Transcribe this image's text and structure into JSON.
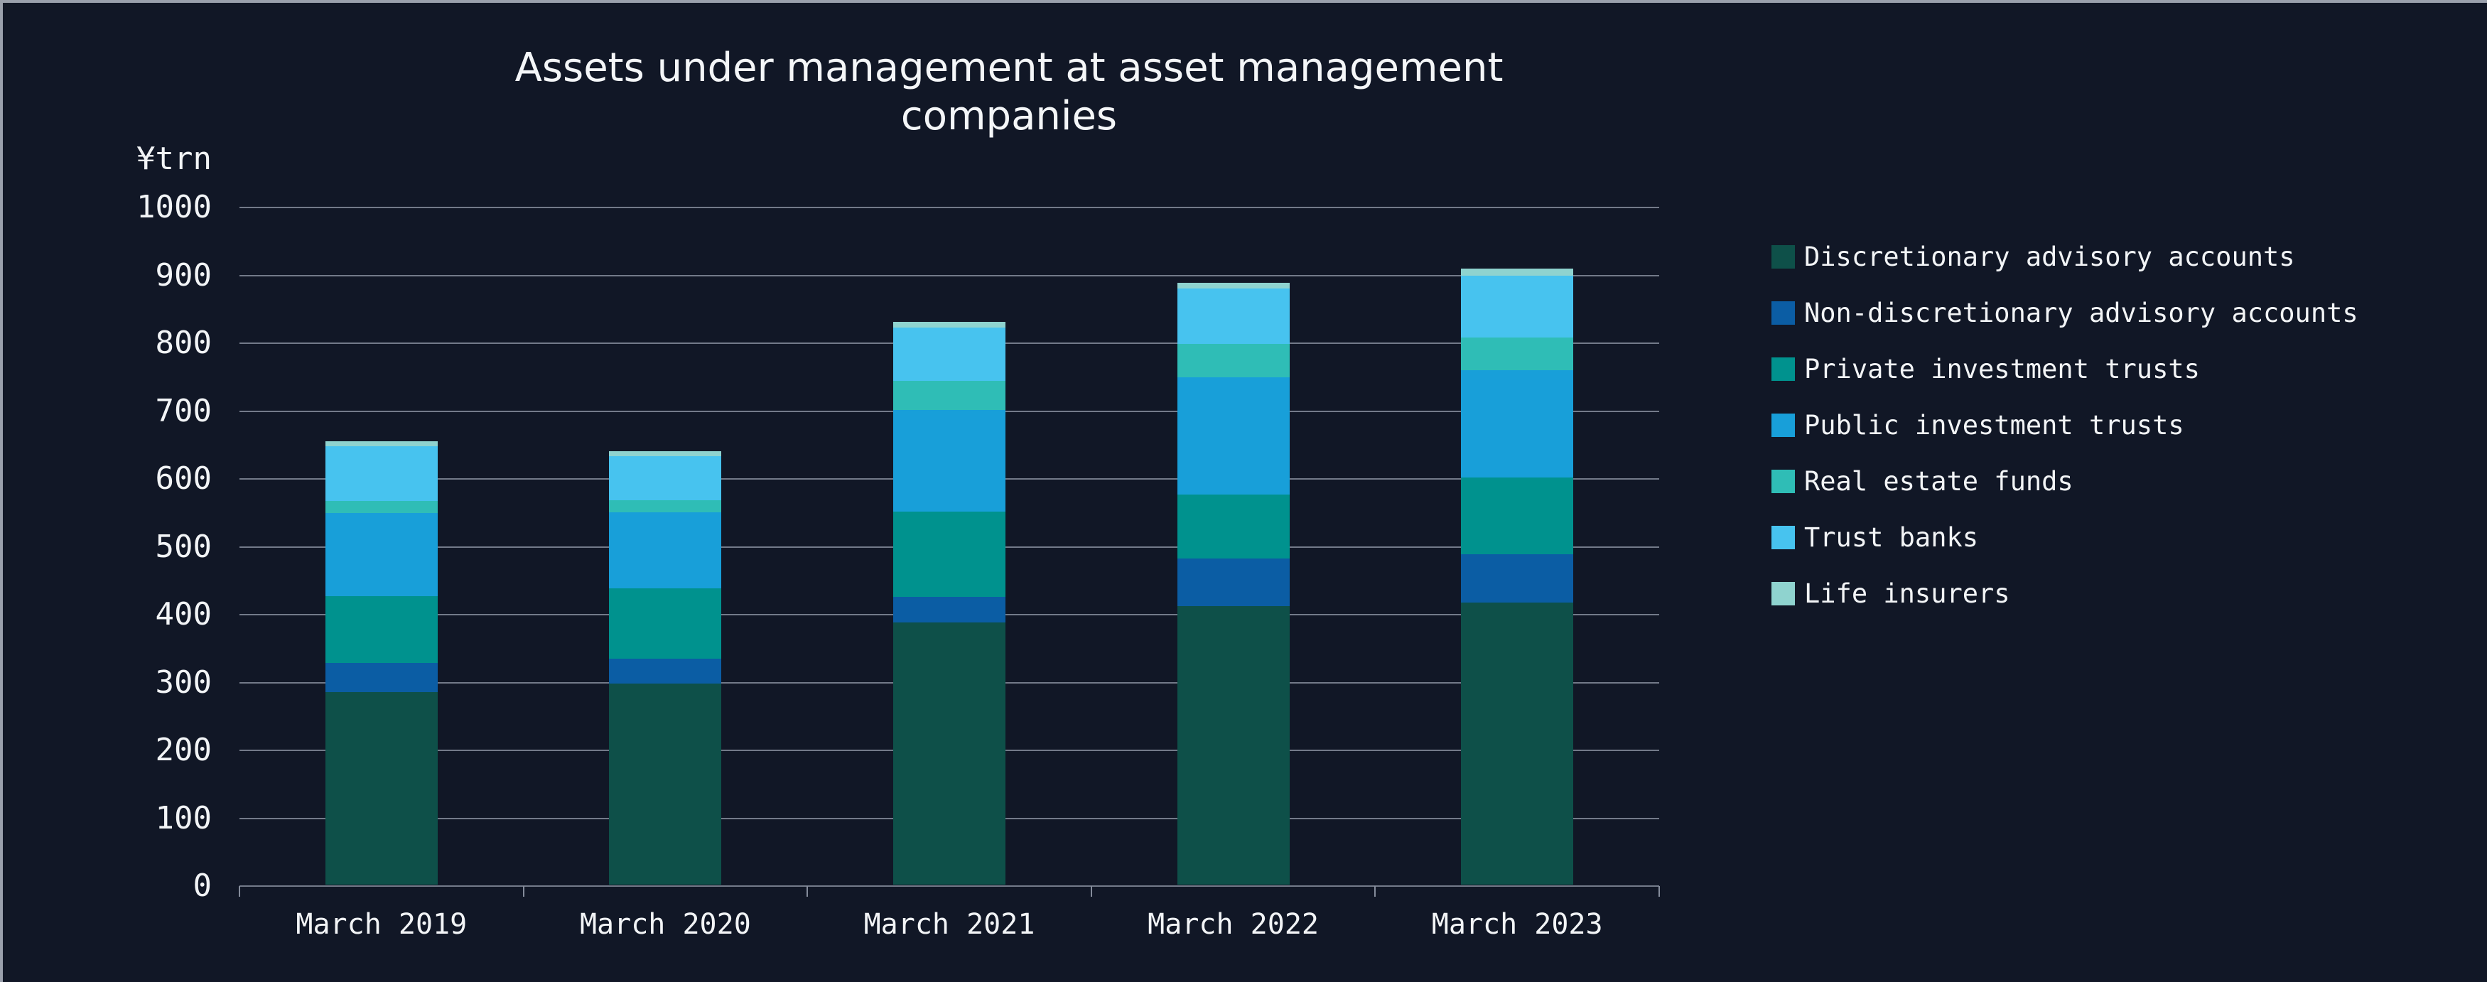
{
  "title": "Assets under management at asset management companies",
  "y_axis": {
    "unit_label": "¥trn",
    "min": 0,
    "max": 1000,
    "tick_step": 100,
    "tick_labels": [
      "0",
      "100",
      "200",
      "300",
      "400",
      "500",
      "600",
      "700",
      "800",
      "900",
      "1000"
    ]
  },
  "colors": {
    "background": "#111726",
    "frame_border": "#9aa0ac",
    "gridline": "#858c9b",
    "text": "#f2f4f6"
  },
  "chart_data": {
    "type": "bar",
    "stacked": true,
    "title": "Assets under management at asset management companies",
    "xlabel": "",
    "ylabel": "¥trn",
    "ylim": [
      0,
      1000
    ],
    "grid": true,
    "legend_position": "right",
    "categories": [
      "March 2019",
      "March 2020",
      "March 2021",
      "March 2022",
      "March 2023"
    ],
    "series": [
      {
        "name": "Discretionary advisory accounts",
        "color": "#0e5049",
        "values": [
          284,
          296,
          386,
          410,
          416
        ]
      },
      {
        "name": "Non-discretionary advisory accounts",
        "color": "#0b5da4",
        "values": [
          43,
          37,
          38,
          71,
          71
        ]
      },
      {
        "name": "Private investment trusts",
        "color": "#00928e",
        "values": [
          98,
          104,
          126,
          94,
          113
        ]
      },
      {
        "name": "Public investment trusts",
        "color": "#189fd9",
        "values": [
          123,
          112,
          150,
          173,
          158
        ]
      },
      {
        "name": "Real estate funds",
        "color": "#2fbdb6",
        "values": [
          17,
          17,
          42,
          49,
          48
        ]
      },
      {
        "name": "Trust banks",
        "color": "#47c3ef",
        "values": [
          81,
          65,
          79,
          82,
          91
        ]
      },
      {
        "name": "Life insurers",
        "color": "#8fd3cf",
        "values": [
          7,
          8,
          8,
          8,
          11
        ]
      }
    ]
  },
  "legend": {
    "position": "right",
    "items": [
      "Discretionary advisory accounts",
      "Non-discretionary advisory accounts",
      "Private investment trusts",
      "Public investment trusts",
      "Real estate funds",
      "Trust banks",
      "Life insurers"
    ]
  }
}
